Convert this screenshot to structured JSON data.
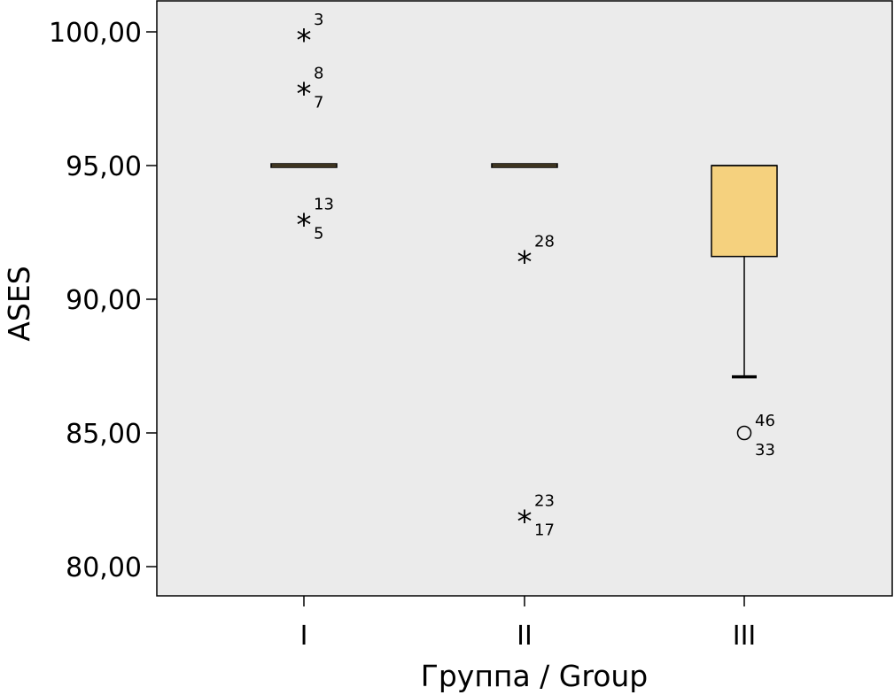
{
  "chart_data": {
    "type": "boxplot",
    "title": "",
    "xlabel": "Группа / Group",
    "ylabel": "ASES",
    "ylim": [
      79,
      101
    ],
    "yticks": [
      80,
      85,
      90,
      95,
      100
    ],
    "ytick_labels": [
      "80,00",
      "85,00",
      "90,00",
      "95,00",
      "100,00"
    ],
    "grid": false,
    "legend": "none",
    "colors": {
      "plot_background": "#ebebeb",
      "box_fill": "#f5d17e",
      "box_stroke": "#000000"
    },
    "categories": [
      "I",
      "II",
      "III"
    ],
    "boxes": [
      {
        "category": "I",
        "whisker_low": 95,
        "q1": 95,
        "median": 95,
        "q3": 95,
        "whisker_high": 95,
        "outliers": [
          {
            "value": 100,
            "marker": "*",
            "labels": [
              "3"
            ]
          },
          {
            "value": 98,
            "marker": "*",
            "labels": [
              "8",
              "7"
            ]
          },
          {
            "value": 93.1,
            "marker": "*",
            "labels": [
              "13",
              "5"
            ]
          }
        ]
      },
      {
        "category": "II",
        "whisker_low": 95,
        "q1": 95,
        "median": 95,
        "q3": 95,
        "whisker_high": 95,
        "outliers": [
          {
            "value": 91.7,
            "marker": "*",
            "labels": [
              "28"
            ]
          },
          {
            "value": 82,
            "marker": "*",
            "labels": [
              "23",
              "17"
            ]
          }
        ]
      },
      {
        "category": "III",
        "whisker_low": 87.1,
        "q1": 91.6,
        "median": 95,
        "q3": 95,
        "whisker_high": 95,
        "outliers": [
          {
            "value": 85,
            "marker": "o",
            "labels": [
              "46",
              "33"
            ]
          }
        ]
      }
    ]
  }
}
